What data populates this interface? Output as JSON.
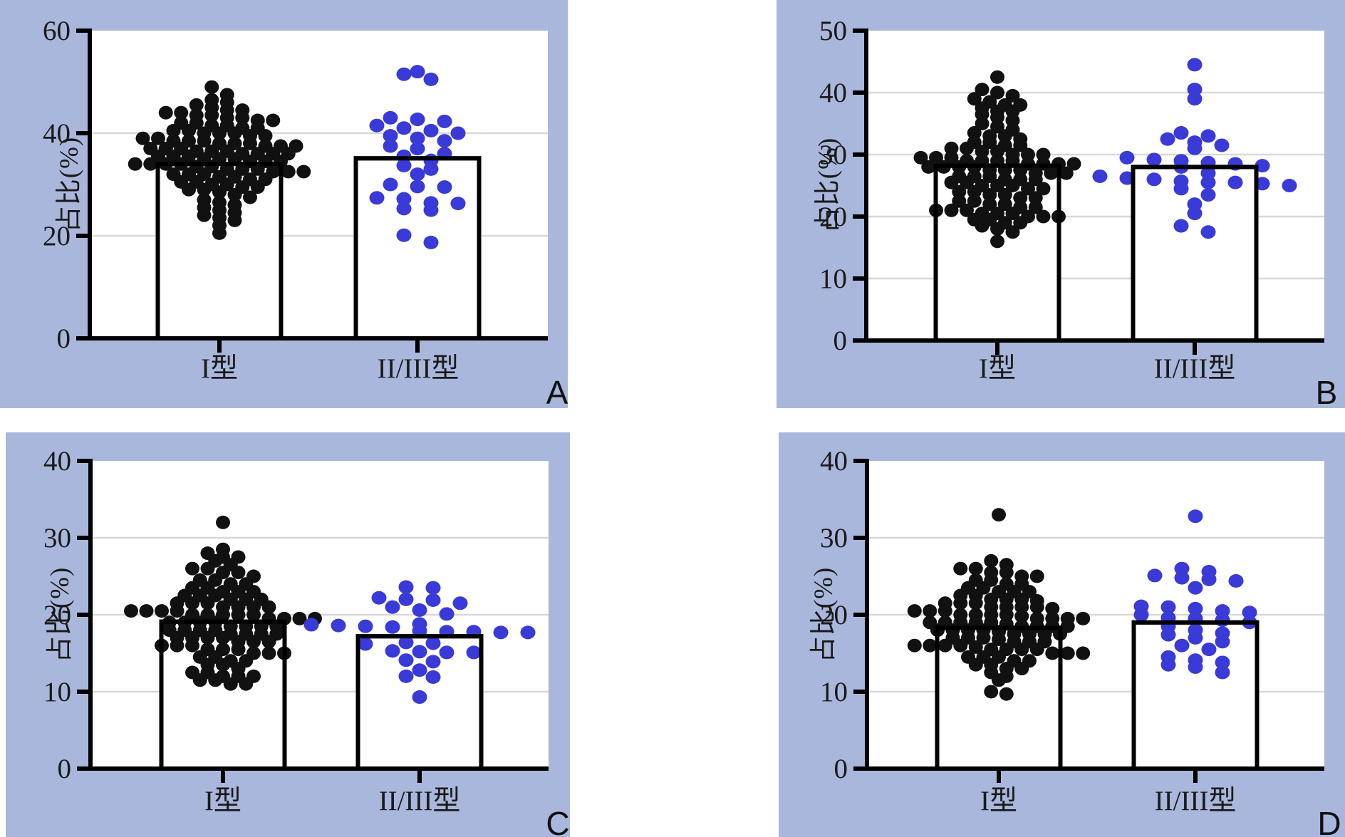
{
  "figure": {
    "kind": "four-panel bar charts with beeswarm scatter overlay",
    "colors": {
      "panel_background": "#aab7dc",
      "plot_background": "#ffffff",
      "axis": "#000000",
      "gridline": "#d8d8d8",
      "bar_fill": "#ffffff",
      "bar_border": "#000000",
      "dot_black": "#111111",
      "dot_blue": "#3a3ad8",
      "text": "#1a1a1a"
    }
  },
  "chart_data": [
    {
      "panel_label": "A",
      "type": "bar",
      "subtype": "bar_with_scatter_overlay",
      "title": "",
      "xlabel": "",
      "ylabel": "占比(%)",
      "categories": [
        "I型",
        "II/III型"
      ],
      "ylim": [
        0,
        60
      ],
      "yticks": [
        0,
        20,
        40,
        60
      ],
      "grid": "horizontal light gridlines at 20 and 40",
      "legend": "none",
      "bar_values": [
        34.0,
        35.1
      ],
      "series": [
        {
          "name": "I型",
          "marker_color": "#111111",
          "values": [
            49,
            47.5,
            46.5,
            46,
            45.5,
            45,
            44.5,
            44.5,
            44,
            44,
            43.5,
            43.5,
            43,
            43,
            42.5,
            42.5,
            42,
            42,
            41.5,
            41.5,
            41,
            41,
            40.5,
            40.5,
            40,
            40,
            40,
            39.5,
            39.5,
            39,
            39,
            38.5,
            38.5,
            38.5,
            38,
            38,
            38,
            37.5,
            37.5,
            37.5,
            37,
            37,
            37,
            36.5,
            36.5,
            36.5,
            36,
            36,
            36,
            36,
            35.5,
            35.5,
            35.5,
            35,
            35,
            35,
            34.5,
            34.5,
            34.5,
            34,
            34,
            34,
            34,
            33.5,
            33.5,
            33,
            33,
            33,
            32.5,
            32.5,
            32.5,
            32,
            32,
            32,
            31.5,
            31.5,
            31,
            31,
            30.5,
            30.5,
            30,
            30,
            29.5,
            29.5,
            29,
            29,
            28.5,
            28,
            27.5,
            27,
            26.5,
            26,
            25.5,
            25,
            24.5,
            24,
            23.5,
            23,
            22,
            20.5
          ]
        },
        {
          "name": "II/III型",
          "marker_color": "#3a3ad8",
          "values": [
            52,
            51.5,
            50.5,
            43,
            42.7,
            42.3,
            41.5,
            41,
            40.5,
            40,
            39.5,
            39,
            38.5,
            37.5,
            37,
            36,
            35.5,
            34.7,
            33.7,
            33,
            32,
            30,
            29.6,
            29.5,
            27.4,
            27.2,
            26.4,
            26.3,
            25.3,
            25,
            20.1,
            18.7
          ]
        }
      ]
    },
    {
      "panel_label": "B",
      "type": "bar",
      "subtype": "bar_with_scatter_overlay",
      "title": "",
      "xlabel": "",
      "ylabel": "占比(%)",
      "categories": [
        "I型",
        "II/III型"
      ],
      "ylim": [
        0,
        50
      ],
      "yticks": [
        0,
        10,
        20,
        30,
        40,
        50
      ],
      "grid": "horizontal light gridlines at 10,20,30,40",
      "legend": "none",
      "bar_values": [
        28.2,
        28.0
      ],
      "series": [
        {
          "name": "I型",
          "marker_color": "#111111",
          "values": [
            42.5,
            40.5,
            40,
            39.5,
            39,
            38.5,
            38,
            38,
            37.5,
            37,
            37,
            36.5,
            36,
            35.5,
            35,
            34.5,
            34,
            33.5,
            33,
            33,
            32.5,
            32,
            32,
            31.5,
            31.5,
            31,
            31,
            30.5,
            30.5,
            30,
            30,
            30,
            29.5,
            29.5,
            29.5,
            29,
            29,
            29,
            29,
            28.5,
            28.5,
            28.5,
            28.5,
            28,
            28,
            28,
            28,
            27.5,
            27.5,
            27.5,
            27,
            27,
            27,
            26.5,
            26.5,
            26.5,
            26,
            26,
            26,
            25.5,
            25.5,
            25,
            25,
            25,
            24.5,
            24.5,
            24,
            24,
            23.5,
            23.5,
            23,
            23,
            22.5,
            22.5,
            22,
            22,
            21.5,
            21.5,
            21,
            21,
            21,
            20.5,
            20.5,
            20.5,
            20,
            20,
            20,
            19.5,
            19.5,
            19,
            19,
            18.5,
            18,
            17.5,
            16
          ]
        },
        {
          "name": "II/III型",
          "marker_color": "#3a3ad8",
          "values": [
            44.5,
            40.5,
            39,
            33.5,
            33,
            32.5,
            32,
            31.5,
            31,
            29.5,
            29.2,
            29,
            28.7,
            28.5,
            28.2,
            28,
            27,
            26.5,
            26.2,
            26,
            25.7,
            25.5,
            25.5,
            25.3,
            25,
            24.5,
            23.5,
            22,
            20.5,
            18.5,
            17.5
          ]
        }
      ]
    },
    {
      "panel_label": "C",
      "type": "bar",
      "subtype": "bar_with_scatter_overlay",
      "title": "",
      "xlabel": "",
      "ylabel": "占比(%)",
      "categories": [
        "I型",
        "II/III型"
      ],
      "ylim": [
        0,
        40
      ],
      "yticks": [
        0,
        10,
        20,
        30,
        40
      ],
      "grid": "horizontal light gridlines at 10,20,30",
      "legend": "none",
      "bar_values": [
        19.1,
        17.2
      ],
      "series": [
        {
          "name": "I型",
          "marker_color": "#111111",
          "values": [
            32,
            28.5,
            28,
            27.5,
            27.5,
            27,
            26.5,
            26,
            26,
            25.5,
            25.5,
            25,
            24.5,
            24.5,
            24,
            24,
            23.5,
            23.5,
            23,
            23,
            23,
            22.5,
            22.5,
            22.5,
            22,
            22,
            22,
            21.5,
            21.5,
            21.5,
            21,
            21,
            21,
            21,
            20.5,
            20.5,
            20.5,
            20.5,
            20,
            20,
            20,
            20,
            20,
            19.5,
            19.5,
            19.5,
            19.5,
            19,
            19,
            19,
            19,
            18.5,
            18.5,
            18.5,
            18.5,
            18,
            18,
            18,
            18,
            17.5,
            17.5,
            17.5,
            17.5,
            17,
            17,
            17,
            17,
            16.5,
            16.5,
            16.5,
            16,
            16,
            16,
            15.5,
            15.5,
            15.5,
            15,
            15,
            15,
            14.5,
            14.5,
            14,
            14,
            13.5,
            13.5,
            13,
            12.5,
            12.5,
            12,
            12,
            12,
            11.5,
            11.5,
            11,
            11
          ]
        },
        {
          "name": "II/III型",
          "marker_color": "#3a3ad8",
          "values": [
            23.6,
            23.5,
            22.2,
            22,
            21.9,
            21.5,
            21,
            20.6,
            20.1,
            18.8,
            18.7,
            18.6,
            18.5,
            18.4,
            17.9,
            17.8,
            17.8,
            17.7,
            17.7,
            16.4,
            16.3,
            16.2,
            15.3,
            15.2,
            15.1,
            15.1,
            14.1,
            13.9,
            12.8,
            12,
            11.9,
            9.3
          ]
        }
      ]
    },
    {
      "panel_label": "D",
      "type": "bar",
      "subtype": "bar_with_scatter_overlay",
      "title": "",
      "xlabel": "",
      "ylabel": "占比(%)",
      "categories": [
        "I型",
        "II/III型"
      ],
      "ylim": [
        0,
        40
      ],
      "yticks": [
        0,
        10,
        20,
        30,
        40
      ],
      "grid": "horizontal light gridlines at 10,20,30",
      "legend": "none",
      "bar_values": [
        18.3,
        19.0
      ],
      "series": [
        {
          "name": "I型",
          "marker_color": "#111111",
          "values": [
            33,
            27,
            26.5,
            26,
            26,
            25.5,
            25.5,
            25,
            25,
            24.5,
            24.5,
            24,
            24,
            23.5,
            23.5,
            23,
            23,
            23,
            22.5,
            22.5,
            22,
            22,
            22,
            21.8,
            21.5,
            21.5,
            21.5,
            21,
            21,
            21,
            21,
            20.8,
            20.5,
            20.5,
            20.5,
            20,
            20,
            20,
            20,
            19.8,
            19.5,
            19.5,
            19.5,
            19.5,
            19,
            19,
            19,
            19,
            19,
            18.8,
            18.5,
            18.5,
            18.5,
            18.5,
            18,
            18,
            18,
            18,
            17.8,
            17.5,
            17.5,
            17.5,
            17.5,
            17,
            17,
            17,
            16.8,
            16.5,
            16.5,
            16.5,
            16,
            16,
            16,
            16,
            15.8,
            15.5,
            15.5,
            15.5,
            15.5,
            15,
            15,
            15,
            14.5,
            14.5,
            14.5,
            14,
            14,
            13.5,
            13.5,
            13,
            13,
            12.5,
            12,
            11.5,
            10,
            9.7
          ]
        },
        {
          "name": "II/III型",
          "marker_color": "#3a3ad8",
          "values": [
            32.8,
            26,
            25.6,
            25.1,
            24.8,
            24.6,
            24.4,
            23.5,
            21.1,
            21,
            20.8,
            20.5,
            20.3,
            20,
            19.6,
            19.5,
            19.3,
            19,
            18.5,
            18,
            17.6,
            17.4,
            17,
            16.5,
            16,
            15.5,
            14.5,
            14.1,
            13.8,
            13.5,
            13.2,
            12.5
          ]
        }
      ]
    }
  ]
}
